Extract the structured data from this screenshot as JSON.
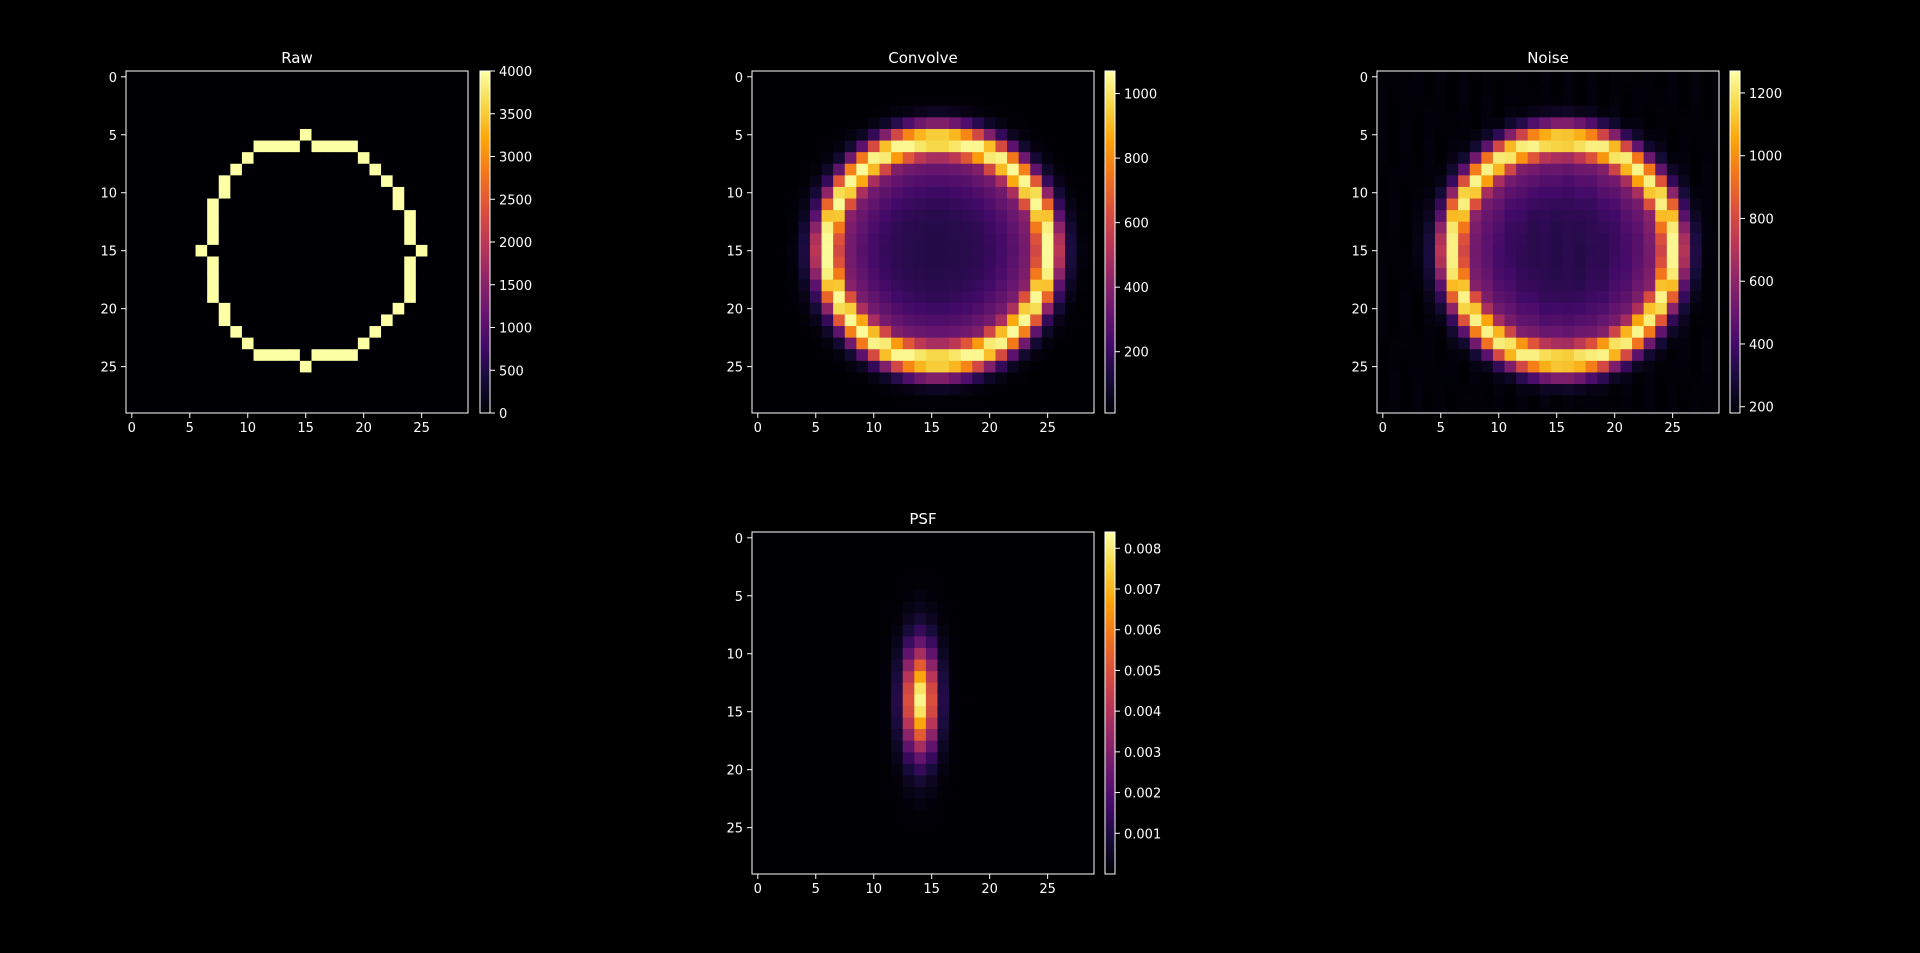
{
  "figure": {
    "background": "#000000",
    "colormap": "inferno"
  },
  "chart_data": [
    {
      "type": "heatmap",
      "id": "raw",
      "title": "Raw",
      "grid_size": 30,
      "shape": "ring",
      "ring_points": [
        [
          5,
          15
        ],
        [
          6,
          11
        ],
        [
          6,
          12
        ],
        [
          6,
          13
        ],
        [
          6,
          14
        ],
        [
          6,
          16
        ],
        [
          6,
          17
        ],
        [
          6,
          18
        ],
        [
          6,
          19
        ],
        [
          7,
          10
        ],
        [
          7,
          20
        ],
        [
          8,
          9
        ],
        [
          8,
          21
        ],
        [
          9,
          8
        ],
        [
          9,
          22
        ],
        [
          10,
          8
        ],
        [
          10,
          23
        ],
        [
          11,
          7
        ],
        [
          11,
          23
        ],
        [
          12,
          7
        ],
        [
          12,
          24
        ],
        [
          13,
          7
        ],
        [
          13,
          24
        ],
        [
          14,
          7
        ],
        [
          14,
          24
        ],
        [
          15,
          6
        ],
        [
          15,
          25
        ],
        [
          16,
          7
        ],
        [
          16,
          24
        ],
        [
          17,
          7
        ],
        [
          17,
          24
        ],
        [
          18,
          7
        ],
        [
          18,
          24
        ],
        [
          19,
          7
        ],
        [
          19,
          24
        ],
        [
          20,
          8
        ],
        [
          20,
          23
        ],
        [
          21,
          8
        ],
        [
          21,
          22
        ],
        [
          22,
          9
        ],
        [
          22,
          21
        ],
        [
          23,
          10
        ],
        [
          23,
          20
        ],
        [
          24,
          11
        ],
        [
          24,
          12
        ],
        [
          24,
          13
        ],
        [
          24,
          14
        ],
        [
          24,
          16
        ],
        [
          24,
          17
        ],
        [
          24,
          18
        ],
        [
          24,
          19
        ],
        [
          25,
          15
        ]
      ],
      "ring_value": 4000,
      "background_value": 0,
      "xticks": [
        "0",
        "5",
        "10",
        "15",
        "20",
        "25"
      ],
      "yticks": [
        "0",
        "5",
        "10",
        "15",
        "20",
        "25"
      ],
      "colorbar": {
        "min": 0,
        "max": 4000,
        "ticks": [
          0,
          500,
          1000,
          1500,
          2000,
          2500,
          3000,
          3500,
          4000
        ],
        "tick_labels": [
          "0",
          "500",
          "1000",
          "1500",
          "2000",
          "2500",
          "3000",
          "3500",
          "4000"
        ]
      }
    },
    {
      "type": "heatmap",
      "id": "convolve",
      "title": "Convolve",
      "grid_size": 30,
      "shape": "blurred-ring",
      "center": [
        15,
        15.5
      ],
      "ring_radius": 9.5,
      "sigma_row": 0.9,
      "sigma_col": 0.7,
      "peak_value": 1060,
      "center_value": 150,
      "background_value": 10,
      "xticks": [
        "0",
        "5",
        "10",
        "15",
        "20",
        "25"
      ],
      "yticks": [
        "0",
        "5",
        "10",
        "15",
        "20",
        "25"
      ],
      "colorbar": {
        "min": 10,
        "max": 1070,
        "ticks": [
          200,
          400,
          600,
          800,
          1000
        ],
        "tick_labels": [
          "200",
          "400",
          "600",
          "800",
          "1000"
        ]
      }
    },
    {
      "type": "heatmap",
      "id": "noise",
      "title": "Noise",
      "grid_size": 30,
      "shape": "blurred-ring-noisy",
      "center": [
        15,
        15.5
      ],
      "ring_radius": 9.5,
      "sigma_row": 0.9,
      "sigma_col": 0.7,
      "peak_value": 1240,
      "center_value": 330,
      "background_value": 185,
      "xticks": [
        "0",
        "5",
        "10",
        "15",
        "20",
        "25"
      ],
      "yticks": [
        "0",
        "5",
        "10",
        "15",
        "20",
        "25"
      ],
      "colorbar": {
        "min": 180,
        "max": 1270,
        "ticks": [
          200,
          400,
          600,
          800,
          1000,
          1200
        ],
        "tick_labels": [
          "200",
          "400",
          "600",
          "800",
          "1000",
          "1200"
        ]
      }
    },
    {
      "type": "heatmap",
      "id": "psf",
      "title": "PSF",
      "grid_size": 30,
      "shape": "gaussian",
      "center": [
        14,
        14
      ],
      "sigma_row": 3.2,
      "sigma_col": 1.0,
      "peak_value": 0.0082,
      "background_value": 0,
      "xticks": [
        "0",
        "5",
        "10",
        "15",
        "20",
        "25"
      ],
      "yticks": [
        "0",
        "5",
        "10",
        "15",
        "20",
        "25"
      ],
      "colorbar": {
        "min": 0,
        "max": 0.0084,
        "ticks": [
          0.001,
          0.002,
          0.003,
          0.004,
          0.005,
          0.006,
          0.007,
          0.008
        ],
        "tick_labels": [
          "0.001",
          "0.002",
          "0.003",
          "0.004",
          "0.005",
          "0.006",
          "0.007",
          "0.008"
        ]
      }
    }
  ]
}
